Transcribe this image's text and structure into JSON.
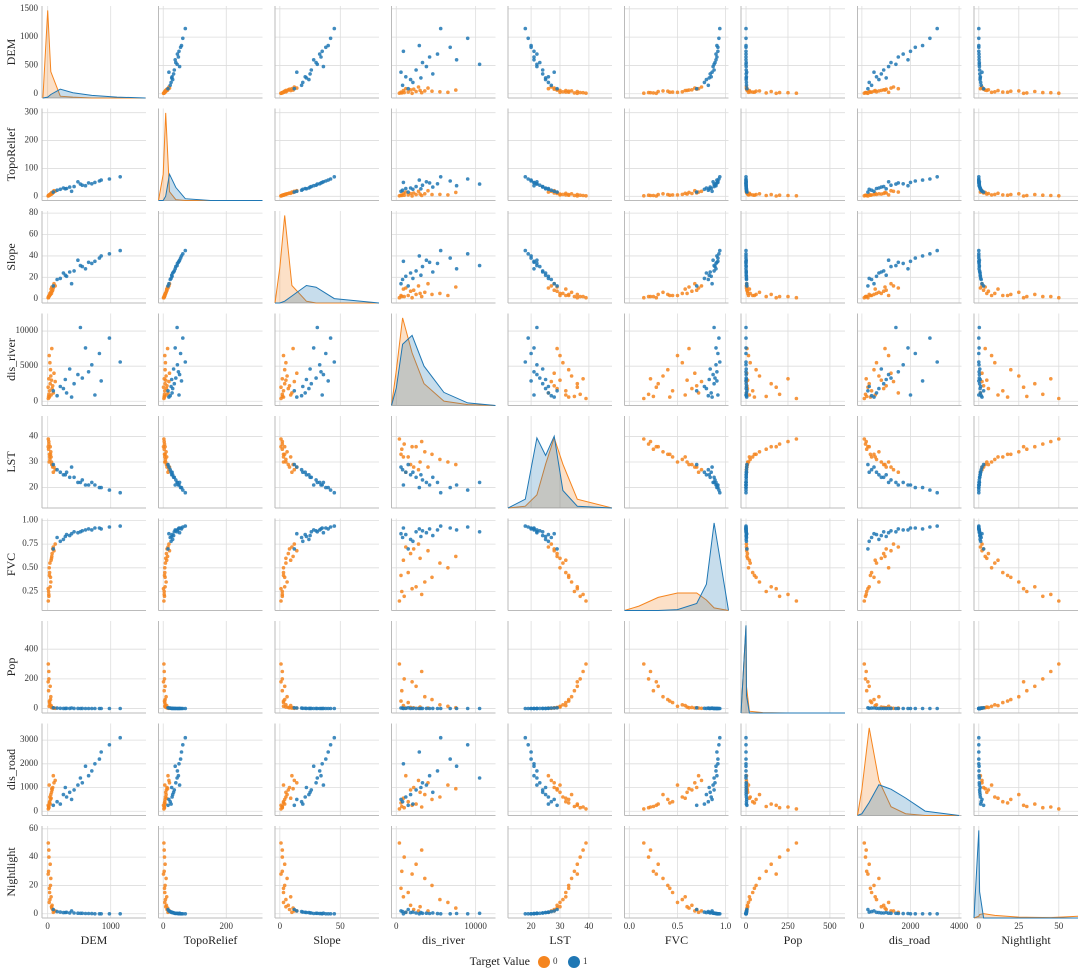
{
  "chart_data": {
    "type": "pairplot",
    "legend_title": "Target Value",
    "density_lim": [
      0,
      1.05
    ],
    "grid": true,
    "variables": [
      {
        "name": "DEM",
        "xlim": [
          -90,
          1560
        ],
        "ylim": [
          -75,
          1550
        ],
        "xticks": [
          0,
          1000
        ],
        "yticks": [
          0,
          500,
          1000,
          1500
        ],
        "kde_x": [
          -75,
          0,
          50,
          200,
          400,
          700,
          1100,
          1550
        ]
      },
      {
        "name": "TopoRelief",
        "xlim": [
          -15,
          315
        ],
        "ylim": [
          -15,
          315
        ],
        "xticks": [
          0,
          200
        ],
        "yticks": [
          0,
          100,
          200,
          300
        ],
        "kde_x": [
          -15,
          0,
          8,
          20,
          40,
          70,
          150,
          315
        ]
      },
      {
        "name": "Slope",
        "xlim": [
          -4,
          82
        ],
        "ylim": [
          -4,
          82
        ],
        "xticks": [
          0,
          50
        ],
        "yticks": [
          0,
          20,
          40,
          60,
          80
        ],
        "kde_x": [
          -4,
          0,
          4,
          10,
          22,
          30,
          45,
          82
        ]
      },
      {
        "name": "dis_river",
        "xlim": [
          -600,
          12500
        ],
        "ylim": [
          -600,
          12500
        ],
        "xticks": [
          0,
          10000
        ],
        "yticks": [
          0,
          5000,
          10000
        ],
        "kde_x": [
          -600,
          0,
          800,
          2000,
          3500,
          6000,
          9000,
          12500
        ]
      },
      {
        "name": "LST",
        "xlim": [
          12,
          48
        ],
        "ylim": [
          12,
          48
        ],
        "xticks": [
          20,
          30,
          40
        ],
        "yticks": [
          20,
          30,
          40
        ],
        "kde_x": [
          12,
          18,
          22,
          25,
          28,
          31,
          36,
          48
        ]
      },
      {
        "name": "FVC",
        "xlim": [
          -0.05,
          1.03
        ],
        "ylim": [
          0.05,
          1.02
        ],
        "xticks": [
          {
            "value": 0,
            "label": "0.0"
          },
          0.5,
          {
            "value": 1,
            "label": "1.0"
          }
        ],
        "yticks": [
          0.25,
          {
            "value": 0.5,
            "label": "0.50"
          },
          0.75,
          {
            "value": 1,
            "label": "1.00"
          }
        ],
        "kde_x": [
          -0.05,
          0.1,
          0.3,
          0.5,
          0.7,
          0.8,
          0.88,
          1.03
        ]
      },
      {
        "name": "Pop",
        "xlim": [
          -30,
          590
        ],
        "ylim": [
          -30,
          590
        ],
        "xticks": [
          0,
          250,
          500
        ],
        "yticks": [
          0,
          200,
          400
        ],
        "kde_x": [
          -30,
          0,
          3,
          20,
          100,
          250,
          400,
          590
        ]
      },
      {
        "name": "dis_road",
        "xlim": [
          -180,
          4100
        ],
        "ylim": [
          -180,
          3700
        ],
        "xticks": [
          0,
          2000,
          4000
        ],
        "yticks": [
          0,
          1000,
          2000,
          3000
        ],
        "kde_x": [
          -180,
          0,
          300,
          700,
          1200,
          1800,
          2600,
          4000
        ]
      },
      {
        "name": "Nightlight",
        "xlim": [
          -3,
          62
        ],
        "ylim": [
          -3,
          62
        ],
        "xticks": [
          0,
          25,
          50
        ],
        "yticks": [
          0,
          20,
          40,
          60
        ],
        "kde_x": [
          -3,
          0,
          0.5,
          3,
          10,
          25,
          45,
          62
        ]
      }
    ],
    "series": [
      {
        "name": "0",
        "color": "#f5851f",
        "observations": [
          [
            30,
            5,
            3,
            1500,
            32,
            0.45,
            40,
            400,
            15
          ],
          [
            60,
            8,
            5,
            3000,
            30,
            0.6,
            10,
            800,
            5
          ],
          [
            15,
            3,
            2,
            700,
            35,
            0.25,
            120,
            200,
            30
          ],
          [
            80,
            12,
            8,
            2200,
            28,
            0.7,
            5,
            1000,
            3
          ],
          [
            45,
            6,
            4,
            4500,
            33,
            0.4,
            60,
            500,
            20
          ],
          [
            20,
            4,
            2,
            1000,
            37,
            0.2,
            200,
            150,
            40
          ],
          [
            120,
            18,
            12,
            2800,
            27,
            0.75,
            2,
            1300,
            2
          ],
          [
            35,
            7,
            5,
            5500,
            31,
            0.55,
            25,
            600,
            10
          ],
          [
            10,
            2,
            1,
            400,
            39,
            0.15,
            300,
            100,
            50
          ],
          [
            70,
            10,
            7,
            1800,
            29,
            0.65,
            8,
            900,
            6
          ],
          [
            50,
            9,
            6,
            3600,
            34,
            0.35,
            80,
            700,
            25
          ],
          [
            25,
            5,
            3,
            6500,
            30,
            0.5,
            15,
            1100,
            8
          ],
          [
            90,
            15,
            10,
            1200,
            26,
            0.72,
            3,
            1500,
            1
          ],
          [
            40,
            6,
            4,
            2500,
            36,
            0.3,
            150,
            300,
            35
          ],
          [
            55,
            11,
            9,
            900,
            32,
            0.58,
            20,
            550,
            12
          ],
          [
            18,
            3,
            2,
            3200,
            38,
            0.22,
            250,
            180,
            45
          ],
          [
            100,
            20,
            14,
            4000,
            28,
            0.68,
            4,
            1200,
            2
          ],
          [
            28,
            4,
            3,
            600,
            33,
            0.42,
            50,
            350,
            18
          ],
          [
            65,
            14,
            11,
            7500,
            29,
            0.62,
            6,
            950,
            4
          ],
          [
            8,
            1,
            1,
            2000,
            36,
            0.28,
            180,
            250,
            28
          ]
        ],
        "density": [
          [
            0,
            1,
            0.3,
            0.02,
            0.01,
            0,
            0,
            0
          ],
          [
            0,
            0.3,
            1,
            0.1,
            0.01,
            0,
            0,
            0
          ],
          [
            0,
            0.4,
            1,
            0.2,
            0.02,
            0,
            0,
            0
          ],
          [
            0,
            0.4,
            1,
            0.6,
            0.25,
            0.05,
            0.01,
            0
          ],
          [
            0,
            0.02,
            0.15,
            0.5,
            0.8,
            0.5,
            0.1,
            0
          ],
          [
            0,
            0.05,
            0.15,
            0.2,
            0.2,
            0.12,
            0.03,
            0
          ],
          [
            0,
            1,
            0.3,
            0.02,
            0.005,
            0,
            0,
            0
          ],
          [
            0,
            0.3,
            1,
            0.4,
            0.1,
            0.02,
            0,
            0
          ],
          [
            0,
            0.02,
            0.04,
            0.05,
            0.03,
            0.01,
            0.005,
            0.02
          ]
        ]
      },
      {
        "name": "1",
        "color": "#1f77b4",
        "observations": [
          [
            420,
            35,
            26,
            2500,
            24,
            0.88,
            1,
            900,
            0.5
          ],
          [
            650,
            48,
            34,
            4200,
            21,
            0.91,
            0,
            1500,
            0.2
          ],
          [
            300,
            28,
            21,
            1200,
            26,
            0.85,
            2,
            600,
            1
          ],
          [
            820,
            55,
            38,
            6800,
            20,
            0.92,
            0,
            2200,
            0
          ],
          [
            150,
            22,
            18,
            800,
            27,
            0.82,
            3,
            400,
            1.5
          ],
          [
            550,
            40,
            30,
            3300,
            23,
            0.89,
            1,
            1200,
            0.3
          ],
          [
            980,
            62,
            42,
            9000,
            19,
            0.93,
            0,
            2800,
            0
          ],
          [
            250,
            30,
            24,
            1800,
            25,
            0.8,
            1,
            700,
            0.8
          ],
          [
            700,
            45,
            33,
            5200,
            22,
            0.9,
            0,
            1700,
            0.1
          ],
          [
            380,
            18,
            14,
            600,
            28,
            0.86,
            4,
            500,
            2
          ],
          [
            480,
            52,
            36,
            3800,
            22,
            0.87,
            1,
            1100,
            0.4
          ],
          [
            1150,
            70,
            45,
            5600,
            18,
            0.94,
            0,
            3100,
            0
          ],
          [
            200,
            25,
            19,
            2100,
            26,
            0.78,
            2,
            300,
            1.2
          ],
          [
            600,
            38,
            28,
            7600,
            21,
            0.9,
            0,
            1900,
            0.2
          ],
          [
            850,
            58,
            40,
            2900,
            20,
            0.91,
            0,
            2500,
            0
          ],
          [
            350,
            33,
            25,
            4600,
            24,
            0.84,
            1,
            800,
            0.6
          ],
          [
            90,
            15,
            12,
            1500,
            29,
            0.7,
            5,
            250,
            3
          ],
          [
            520,
            44,
            31,
            10500,
            22,
            0.88,
            0,
            1400,
            0.3
          ],
          [
            750,
            50,
            35,
            900,
            21,
            0.92,
            0,
            2000,
            0
          ],
          [
            280,
            27,
            22,
            3100,
            25,
            0.83,
            1,
            1000,
            0.9
          ]
        ],
        "density": [
          [
            0,
            0.01,
            0.04,
            0.1,
            0.06,
            0.03,
            0.01,
            0
          ],
          [
            0,
            0,
            0.05,
            0.3,
            0.15,
            0.02,
            0,
            0
          ],
          [
            0,
            0,
            0.02,
            0.08,
            0.2,
            0.18,
            0.05,
            0
          ],
          [
            0,
            0.2,
            0.7,
            0.8,
            0.45,
            0.15,
            0.03,
            0
          ],
          [
            0,
            0.1,
            0.8,
            0.6,
            0.82,
            0.2,
            0.02,
            0
          ],
          [
            0,
            0,
            0,
            0.01,
            0.08,
            0.3,
            1,
            0
          ],
          [
            0,
            1,
            0.2,
            0,
            0,
            0,
            0,
            0
          ],
          [
            0,
            0.02,
            0.15,
            0.35,
            0.3,
            0.2,
            0.05,
            0
          ],
          [
            0,
            1,
            0.3,
            0,
            0,
            0,
            0,
            0
          ]
        ]
      }
    ]
  }
}
